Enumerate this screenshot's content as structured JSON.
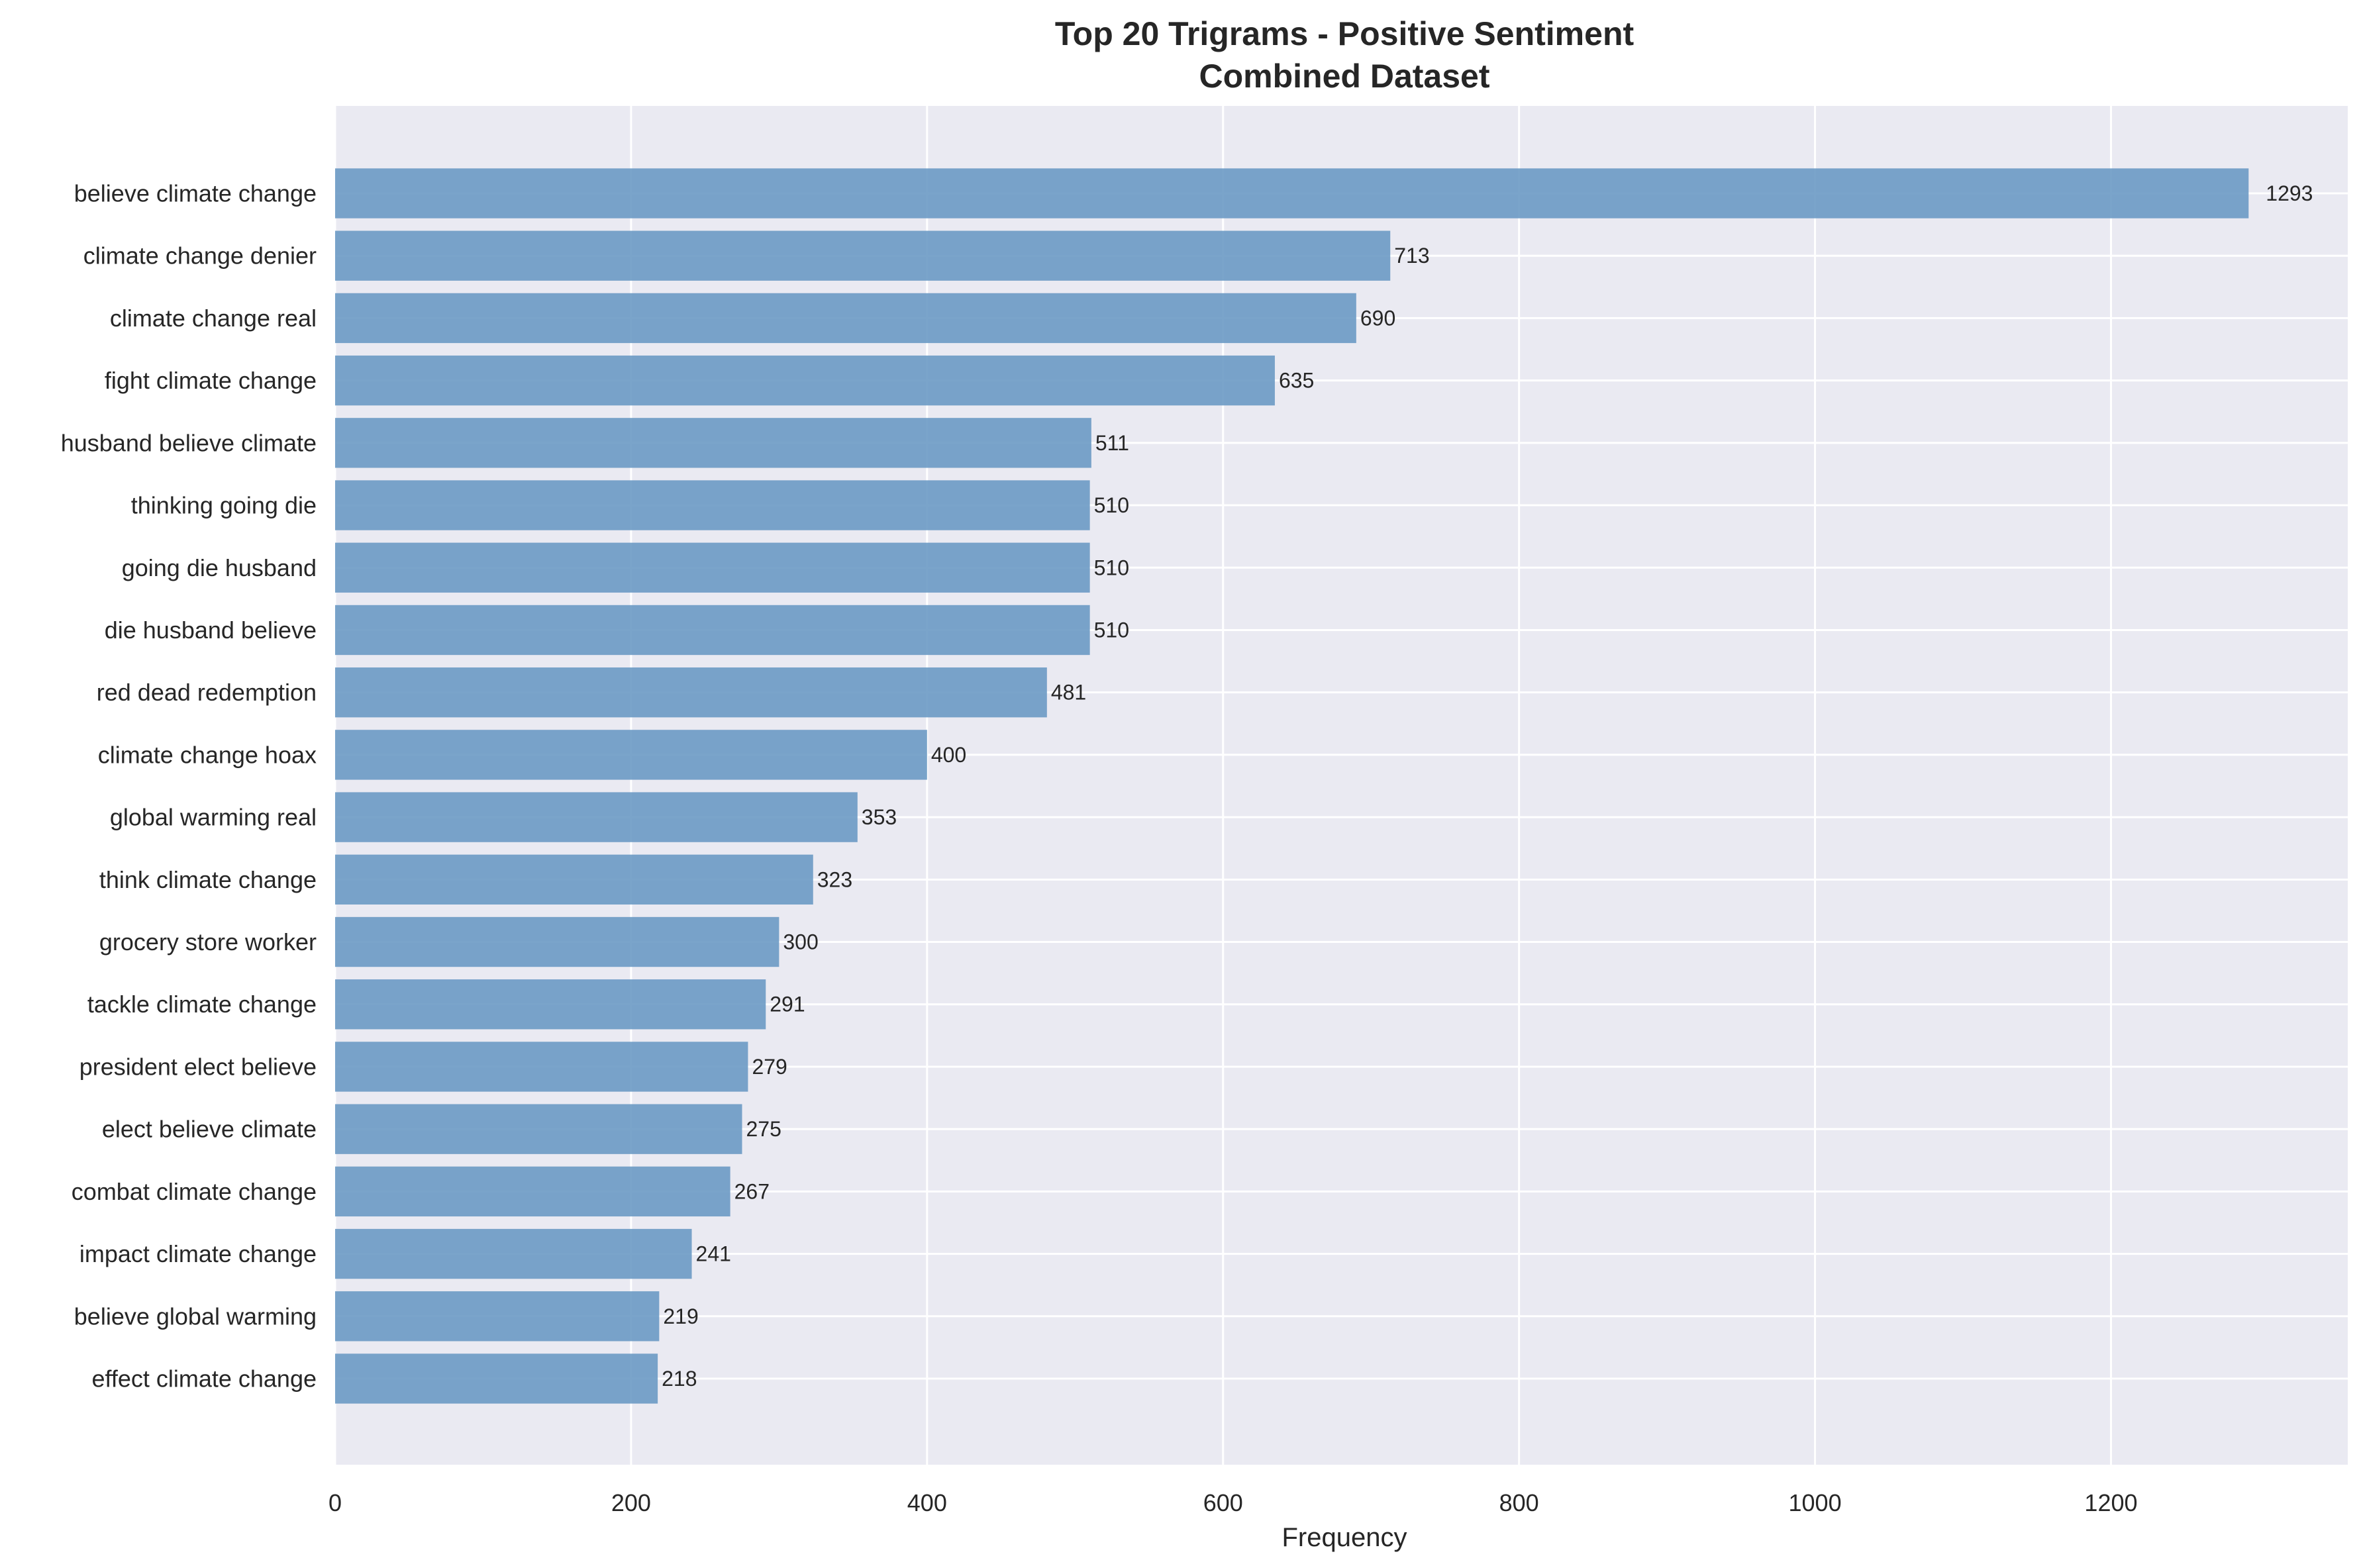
{
  "chart_data": {
    "type": "bar",
    "orientation": "horizontal",
    "title": "Top 20 Trigrams - Positive Sentiment",
    "subtitle": "Combined Dataset",
    "xlabel": "Frequency",
    "ylabel": "",
    "xlim": [
      0,
      1360
    ],
    "xticks": [
      0,
      200,
      400,
      600,
      800,
      1000,
      1200
    ],
    "grid": true,
    "legend": "none",
    "bar_color": "#6b9ac4",
    "plot_background": "#eaeaf2",
    "grid_color": "#ffffff",
    "categories": [
      "believe climate change",
      "climate change denier",
      "climate change real",
      "fight climate change",
      "husband believe climate",
      "thinking going die",
      "going die husband",
      "die husband believe",
      "red dead redemption",
      "climate change hoax",
      "global warming real",
      "think climate change",
      "grocery store worker",
      "tackle climate change",
      "president elect believe",
      "elect believe climate",
      "combat climate change",
      "impact climate change",
      "believe global warming",
      "effect climate change"
    ],
    "values": [
      1293,
      713,
      690,
      635,
      511,
      510,
      510,
      510,
      481,
      400,
      353,
      323,
      300,
      291,
      279,
      275,
      267,
      241,
      219,
      218
    ]
  }
}
